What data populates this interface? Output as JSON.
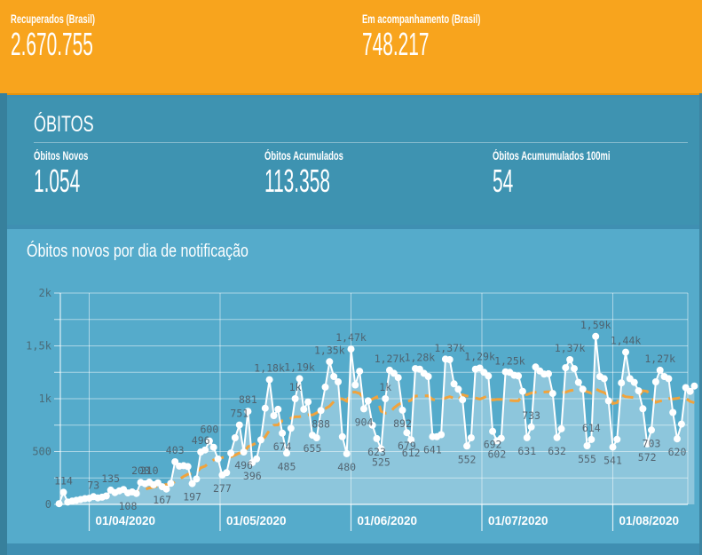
{
  "banner": {
    "stats": [
      {
        "label": "Recuperados (Brasil)",
        "value": "2.670.755"
      },
      {
        "label": "Em acompanhamento (Brasil)",
        "value": "748.217"
      }
    ]
  },
  "obitos": {
    "title": "ÓBITOS",
    "stats": [
      {
        "label": "Óbitos Novos",
        "value": "1.054"
      },
      {
        "label": "Óbitos Acumulados",
        "value": "113.358"
      },
      {
        "label": "Óbitos Acumumulados 100mi",
        "value": "54"
      }
    ]
  },
  "chart_section": {
    "title": "Óbitos novos por dia de notificação"
  },
  "chart_data": {
    "type": "area",
    "title": "Óbitos novos por dia de notificação",
    "xlabel": "",
    "ylabel": "",
    "ylim": [
      0,
      2000
    ],
    "grid": true,
    "yticks": [
      {
        "value": 0,
        "label": "0"
      },
      {
        "value": 500,
        "label": "500"
      },
      {
        "value": 1000,
        "label": "1k"
      },
      {
        "value": 1500,
        "label": "1,5k"
      },
      {
        "value": 2000,
        "label": "2k"
      }
    ],
    "minor_yticks": [
      250,
      750,
      1250,
      1750
    ],
    "xticks": [
      "01/04/2020",
      "01/05/2020",
      "01/06/2020",
      "01/07/2020",
      "01/08/2020"
    ],
    "trend": {
      "style": "dashed",
      "window": 7,
      "color": "#f1a33c"
    },
    "colors": {
      "line": "#ffffff",
      "marker": "#ffffff",
      "area": "rgba(255,255,255,0.33)",
      "trend": "#f1a33c",
      "point_label": "#4e5b66",
      "axis_label": "#4a6b78",
      "date_label": "#ffffff",
      "grid": "rgba(255,255,255,0.5)"
    },
    "points_format": [
      "date (dd/mm/2020)",
      "value",
      "label shown on chart or null",
      "label position a=above b=below"
    ],
    "points": [
      [
        "25/03",
        7,
        null,
        null
      ],
      [
        "26/03",
        114,
        "114",
        "a"
      ],
      [
        "27/03",
        22,
        null,
        null
      ],
      [
        "28/03",
        31,
        null,
        null
      ],
      [
        "29/03",
        39,
        null,
        null
      ],
      [
        "30/03",
        46,
        null,
        null
      ],
      [
        "31/03",
        55,
        null,
        null
      ],
      [
        "01/04",
        58,
        null,
        null
      ],
      [
        "02/04",
        73,
        "73",
        "a"
      ],
      [
        "03/04",
        61,
        null,
        null
      ],
      [
        "04/04",
        68,
        null,
        null
      ],
      [
        "05/04",
        80,
        null,
        null
      ],
      [
        "06/04",
        135,
        "135",
        "a"
      ],
      [
        "07/04",
        112,
        null,
        null
      ],
      [
        "08/04",
        128,
        null,
        null
      ],
      [
        "09/04",
        141,
        null,
        null
      ],
      [
        "10/04",
        108,
        "108",
        "b"
      ],
      [
        "11/04",
        118,
        null,
        null
      ],
      [
        "12/04",
        103,
        null,
        null
      ],
      [
        "13/04",
        208,
        "208",
        "a"
      ],
      [
        "14/04",
        196,
        null,
        null
      ],
      [
        "15/04",
        210,
        "210",
        "a"
      ],
      [
        "16/04",
        186,
        null,
        null
      ],
      [
        "17/04",
        204,
        null,
        null
      ],
      [
        "18/04",
        167,
        "167",
        "b"
      ],
      [
        "19/04",
        145,
        null,
        null
      ],
      [
        "20/04",
        199,
        null,
        null
      ],
      [
        "21/04",
        403,
        "403",
        "a"
      ],
      [
        "22/04",
        362,
        null,
        null
      ],
      [
        "23/04",
        366,
        null,
        null
      ],
      [
        "24/04",
        358,
        null,
        null
      ],
      [
        "25/04",
        197,
        "197",
        "b"
      ],
      [
        "26/04",
        240,
        null,
        null
      ],
      [
        "27/04",
        496,
        "496",
        "a"
      ],
      [
        "28/04",
        515,
        null,
        null
      ],
      [
        "29/04",
        600,
        "600",
        "a"
      ],
      [
        "30/04",
        540,
        null,
        null
      ],
      [
        "01/05",
        430,
        null,
        null
      ],
      [
        "02/05",
        277,
        "277",
        "b"
      ],
      [
        "03/05",
        300,
        null,
        null
      ],
      [
        "04/05",
        485,
        null,
        null
      ],
      [
        "05/05",
        630,
        null,
        null
      ],
      [
        "06/05",
        751,
        "751",
        "a"
      ],
      [
        "07/05",
        496,
        "496",
        "b"
      ],
      [
        "08/05",
        881,
        "881",
        "a"
      ],
      [
        "09/05",
        396,
        "396",
        "b"
      ],
      [
        "10/05",
        430,
        null,
        null
      ],
      [
        "11/05",
        610,
        null,
        null
      ],
      [
        "12/05",
        910,
        null,
        null
      ],
      [
        "13/05",
        1180,
        "1,18k",
        "a"
      ],
      [
        "14/05",
        840,
        null,
        null
      ],
      [
        "15/05",
        900,
        null,
        null
      ],
      [
        "16/05",
        674,
        "674",
        "b"
      ],
      [
        "17/05",
        485,
        "485",
        "b"
      ],
      [
        "18/05",
        720,
        null,
        null
      ],
      [
        "19/05",
        1000,
        "1k",
        "a"
      ],
      [
        "20/05",
        1190,
        "1,19k",
        "a"
      ],
      [
        "21/05",
        900,
        null,
        null
      ],
      [
        "22/05",
        970,
        null,
        null
      ],
      [
        "23/05",
        655,
        "655",
        "b"
      ],
      [
        "24/05",
        630,
        null,
        null
      ],
      [
        "25/05",
        888,
        "888",
        "b"
      ],
      [
        "26/05",
        1110,
        null,
        null
      ],
      [
        "27/05",
        1350,
        "1,35k",
        "a"
      ],
      [
        "28/05",
        1210,
        null,
        null
      ],
      [
        "29/05",
        1160,
        null,
        null
      ],
      [
        "30/05",
        640,
        null,
        null
      ],
      [
        "31/05",
        480,
        "480",
        "b"
      ],
      [
        "01/06",
        1470,
        "1,47k",
        "a"
      ],
      [
        "02/06",
        1130,
        null,
        null
      ],
      [
        "03/06",
        1260,
        null,
        null
      ],
      [
        "04/06",
        904,
        "904",
        "b"
      ],
      [
        "05/06",
        980,
        null,
        null
      ],
      [
        "06/06",
        750,
        null,
        null
      ],
      [
        "07/06",
        623,
        "623",
        "b"
      ],
      [
        "08/06",
        525,
        "525",
        "b"
      ],
      [
        "09/06",
        1000,
        "1k",
        "a"
      ],
      [
        "10/06",
        1270,
        "1,27k",
        "a"
      ],
      [
        "11/06",
        1240,
        null,
        null
      ],
      [
        "12/06",
        1200,
        null,
        null
      ],
      [
        "13/06",
        892,
        "892",
        "b"
      ],
      [
        "14/06",
        679,
        "679",
        "b"
      ],
      [
        "15/06",
        612,
        "612",
        "b"
      ],
      [
        "16/06",
        1285,
        null,
        null
      ],
      [
        "17/06",
        1280,
        "1,28k",
        "a"
      ],
      [
        "18/06",
        1240,
        null,
        null
      ],
      [
        "19/06",
        1210,
        null,
        null
      ],
      [
        "20/06",
        641,
        "641",
        "b"
      ],
      [
        "21/06",
        640,
        null,
        null
      ],
      [
        "22/06",
        660,
        null,
        null
      ],
      [
        "23/06",
        1375,
        null,
        null
      ],
      [
        "24/06",
        1370,
        "1,37k",
        "a"
      ],
      [
        "25/06",
        1140,
        null,
        null
      ],
      [
        "26/06",
        1090,
        null,
        null
      ],
      [
        "27/06",
        990,
        null,
        null
      ],
      [
        "28/06",
        552,
        "552",
        "b"
      ],
      [
        "29/06",
        630,
        null,
        null
      ],
      [
        "30/06",
        1280,
        null,
        null
      ],
      [
        "01/07",
        1290,
        "1,29k",
        "a"
      ],
      [
        "02/07",
        1250,
        null,
        null
      ],
      [
        "03/07",
        1215,
        null,
        null
      ],
      [
        "04/07",
        692,
        "692",
        "b"
      ],
      [
        "05/07",
        602,
        "602",
        "b"
      ],
      [
        "06/07",
        625,
        null,
        null
      ],
      [
        "07/07",
        1255,
        null,
        null
      ],
      [
        "08/07",
        1250,
        "1,25k",
        "a"
      ],
      [
        "09/07",
        1222,
        null,
        null
      ],
      [
        "10/07",
        1215,
        null,
        null
      ],
      [
        "11/07",
        1070,
        null,
        null
      ],
      [
        "12/07",
        631,
        "631",
        "b"
      ],
      [
        "13/07",
        733,
        "733",
        "a"
      ],
      [
        "14/07",
        1300,
        null,
        null
      ],
      [
        "15/07",
        1262,
        null,
        null
      ],
      [
        "16/07",
        1233,
        null,
        null
      ],
      [
        "17/07",
        1236,
        null,
        null
      ],
      [
        "18/07",
        1050,
        null,
        null
      ],
      [
        "19/07",
        632,
        "632",
        "b"
      ],
      [
        "20/07",
        715,
        null,
        null
      ],
      [
        "21/07",
        1293,
        null,
        null
      ],
      [
        "22/07",
        1370,
        "1,37k",
        "a"
      ],
      [
        "23/07",
        1285,
        null,
        null
      ],
      [
        "24/07",
        1155,
        null,
        null
      ],
      [
        "25/07",
        1090,
        null,
        null
      ],
      [
        "26/07",
        555,
        "555",
        "b"
      ],
      [
        "27/07",
        614,
        "614",
        "a"
      ],
      [
        "28/07",
        1590,
        "1,59k",
        "a"
      ],
      [
        "29/07",
        1210,
        null,
        null
      ],
      [
        "30/07",
        1190,
        null,
        null
      ],
      [
        "31/07",
        980,
        null,
        null
      ],
      [
        "01/08",
        541,
        "541",
        "b"
      ],
      [
        "02/08",
        615,
        null,
        null
      ],
      [
        "03/08",
        1150,
        null,
        null
      ],
      [
        "04/08",
        1440,
        "1,44k",
        "a"
      ],
      [
        "05/08",
        1190,
        null,
        null
      ],
      [
        "06/08",
        1155,
        null,
        null
      ],
      [
        "07/08",
        1075,
        null,
        null
      ],
      [
        "08/08",
        905,
        null,
        null
      ],
      [
        "09/08",
        572,
        "572",
        "b"
      ],
      [
        "10/08",
        703,
        "703",
        "b"
      ],
      [
        "11/08",
        1160,
        null,
        null
      ],
      [
        "12/08",
        1270,
        "1,27k",
        "a"
      ],
      [
        "13/08",
        1210,
        null,
        null
      ],
      [
        "14/08",
        1190,
        null,
        null
      ],
      [
        "15/08",
        870,
        null,
        null
      ],
      [
        "16/08",
        620,
        "620",
        "b"
      ],
      [
        "17/08",
        760,
        null,
        null
      ],
      [
        "18/08",
        1105,
        null,
        null
      ],
      [
        "19/08",
        1070,
        null,
        null
      ],
      [
        "20/08",
        1120,
        null,
        null
      ]
    ]
  }
}
